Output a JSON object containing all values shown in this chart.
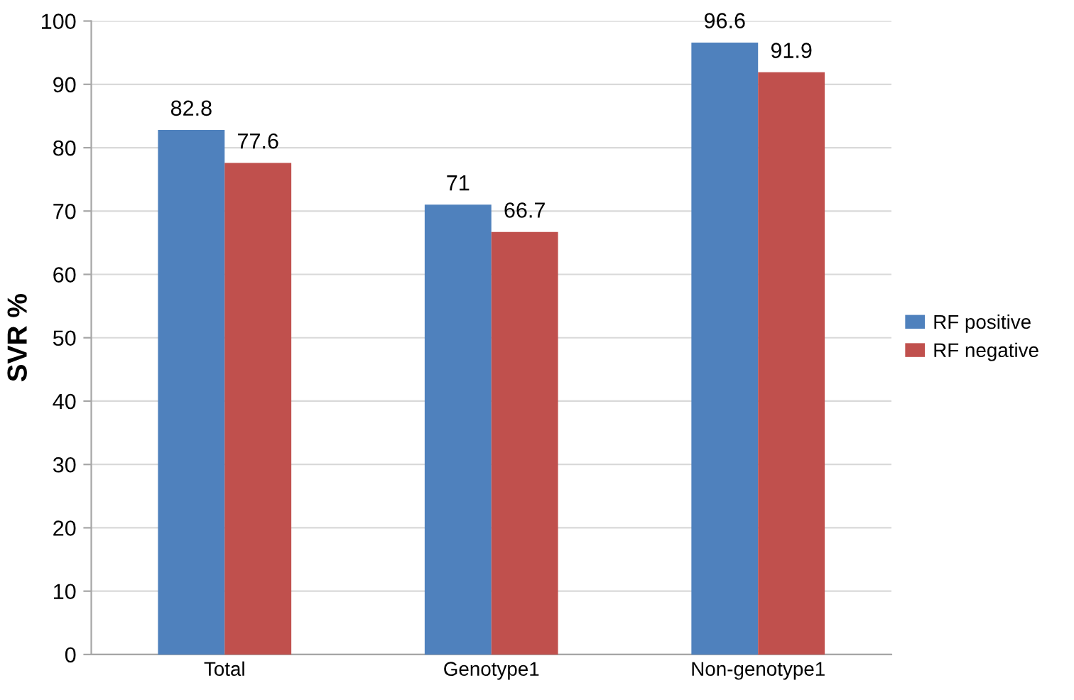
{
  "chart_data": {
    "type": "bar",
    "ylabel": "SVR %",
    "categories": [
      "Total",
      "Genotype1",
      "Non-genotype1"
    ],
    "series": [
      {
        "name": "RF positive",
        "color": "#4f81bd",
        "values": [
          82.8,
          71,
          96.6
        ]
      },
      {
        "name": "RF negative",
        "color": "#c0504d",
        "values": [
          77.6,
          66.7,
          91.9
        ]
      }
    ],
    "ylim": [
      0,
      100
    ],
    "yticks": [
      0,
      10,
      20,
      30,
      40,
      50,
      60,
      70,
      80,
      90,
      100
    ],
    "grid": "y",
    "legend": "right",
    "data_labels": true
  }
}
